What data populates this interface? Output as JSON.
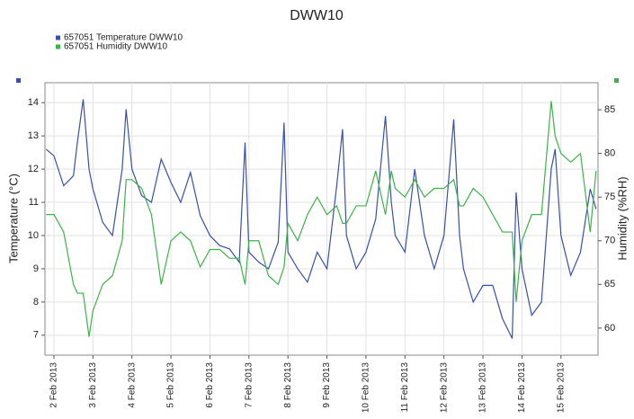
{
  "chart_data": {
    "type": "line",
    "title": "DWW10",
    "y_label": "Temperature (°C)",
    "y2_label": "Humidity (%RH)",
    "x": [
      1.8,
      2,
      2.25,
      2.5,
      2.6,
      2.75,
      2.9,
      3,
      3.25,
      3.5,
      3.75,
      3.85,
      4,
      4.25,
      4.5,
      4.75,
      5,
      5.25,
      5.5,
      5.75,
      6,
      6.25,
      6.5,
      6.75,
      6.9,
      7,
      7.25,
      7.5,
      7.75,
      7.9,
      8,
      8.25,
      8.5,
      8.75,
      9,
      9.25,
      9.4,
      9.5,
      9.75,
      10,
      10.25,
      10.5,
      10.65,
      10.75,
      11,
      11.25,
      11.5,
      11.75,
      12,
      12.25,
      12.4,
      12.5,
      12.75,
      13,
      13.25,
      13.5,
      13.75,
      13.85,
      14,
      14.25,
      14.5,
      14.75,
      14.85,
      15,
      15.25,
      15.5,
      15.75,
      15.9
    ],
    "series": [
      {
        "name": "657051  Temperature DWW10",
        "color": "#3a4fb0",
        "axis": "y",
        "values": [
          12.6,
          12.4,
          11.5,
          11.8,
          12.8,
          14.1,
          12.0,
          11.4,
          10.4,
          10.0,
          12.0,
          13.8,
          12.0,
          11.2,
          11.0,
          12.3,
          11.6,
          11.0,
          11.9,
          10.6,
          10.0,
          9.7,
          9.6,
          9.2,
          12.8,
          9.5,
          9.2,
          9.0,
          9.8,
          13.4,
          9.5,
          9.0,
          8.6,
          9.5,
          9.0,
          11.5,
          13.2,
          10.0,
          9.0,
          9.5,
          10.5,
          13.6,
          11.0,
          10.0,
          9.5,
          12.0,
          10.0,
          9.0,
          10.0,
          13.5,
          10.0,
          9.0,
          8.0,
          8.5,
          8.5,
          7.5,
          6.9,
          11.3,
          9.0,
          7.6,
          8.0,
          12.0,
          12.6,
          10.0,
          8.8,
          9.5,
          11.4,
          10.8
        ]
      },
      {
        "name": "657051  Humidity DWW10",
        "color": "#3cb34a",
        "axis": "y2",
        "values": [
          73,
          73,
          71,
          65,
          64,
          64,
          59,
          62,
          65,
          66,
          70,
          77,
          77,
          76,
          73,
          65,
          70,
          71,
          70,
          67,
          69,
          69,
          68,
          68,
          65,
          70,
          70,
          66,
          65,
          67,
          72,
          70,
          73,
          75,
          73,
          74,
          72,
          72,
          74,
          74,
          78,
          73,
          78,
          76,
          75,
          77,
          75,
          76,
          76,
          77,
          74,
          74,
          76,
          75,
          73,
          71,
          71,
          63,
          70,
          73,
          73,
          86,
          82,
          80,
          79,
          80,
          71,
          78
        ]
      }
    ],
    "xlim": [
      1.77,
      15.95
    ],
    "xticks": [
      {
        "value": 2,
        "label": "2 Feb 2013"
      },
      {
        "value": 3,
        "label": "3 Feb 2013"
      },
      {
        "value": 4,
        "label": "4 Feb 2013"
      },
      {
        "value": 5,
        "label": "5 Feb 2013"
      },
      {
        "value": 6,
        "label": "6 Feb 2013"
      },
      {
        "value": 7,
        "label": "7 Feb 2013"
      },
      {
        "value": 8,
        "label": "8 Feb 2013"
      },
      {
        "value": 9,
        "label": "9 Feb 2013"
      },
      {
        "value": 10,
        "label": "10 Feb 2013"
      },
      {
        "value": 11,
        "label": "11 Feb 2013"
      },
      {
        "value": 12,
        "label": "12 Feb 2013"
      },
      {
        "value": 13,
        "label": "13 Feb 2013"
      },
      {
        "value": 14,
        "label": "14 Feb 2013"
      },
      {
        "value": 15,
        "label": "15 Feb 2013"
      }
    ],
    "ylim": [
      6.4,
      14.6
    ],
    "yticks": [
      7,
      8,
      9,
      10,
      11,
      12,
      13,
      14
    ],
    "y2lim": [
      56.9,
      88.1
    ],
    "y2ticks": [
      60,
      65,
      70,
      75,
      80,
      85
    ],
    "grid": true
  }
}
